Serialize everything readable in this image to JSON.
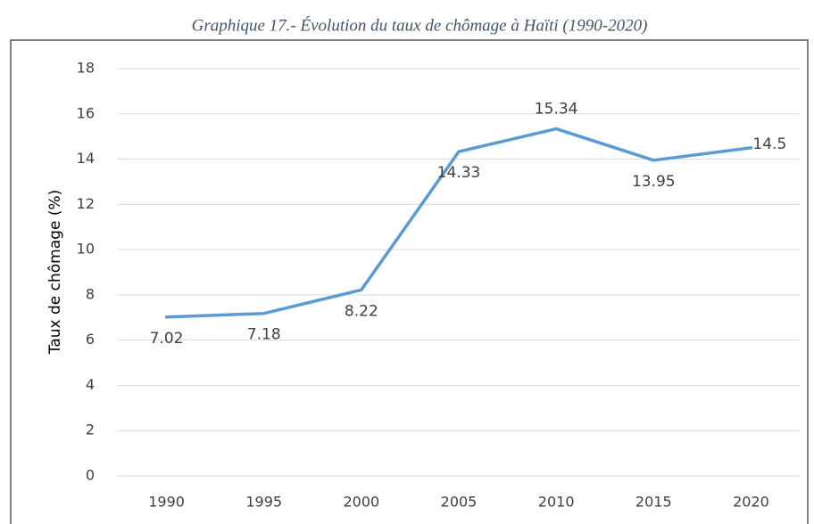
{
  "chart_data": {
    "type": "line",
    "title": "Graphique 17.- Évolution du taux de chômage à Haïti (1990-2020)",
    "y_label": "Taux de chômage (%)",
    "categories": [
      "1990",
      "1995",
      "2000",
      "2005",
      "2010",
      "2015",
      "2020"
    ],
    "series": [
      {
        "name": "Taux de chômage",
        "color": "#5b9bd5",
        "values": [
          7.02,
          7.18,
          8.22,
          14.33,
          15.34,
          13.95,
          14.5
        ]
      }
    ],
    "ylim": [
      0,
      18
    ],
    "yticks": [
      0,
      2,
      4,
      6,
      8,
      10,
      12,
      14,
      16,
      18
    ],
    "grid": true
  }
}
